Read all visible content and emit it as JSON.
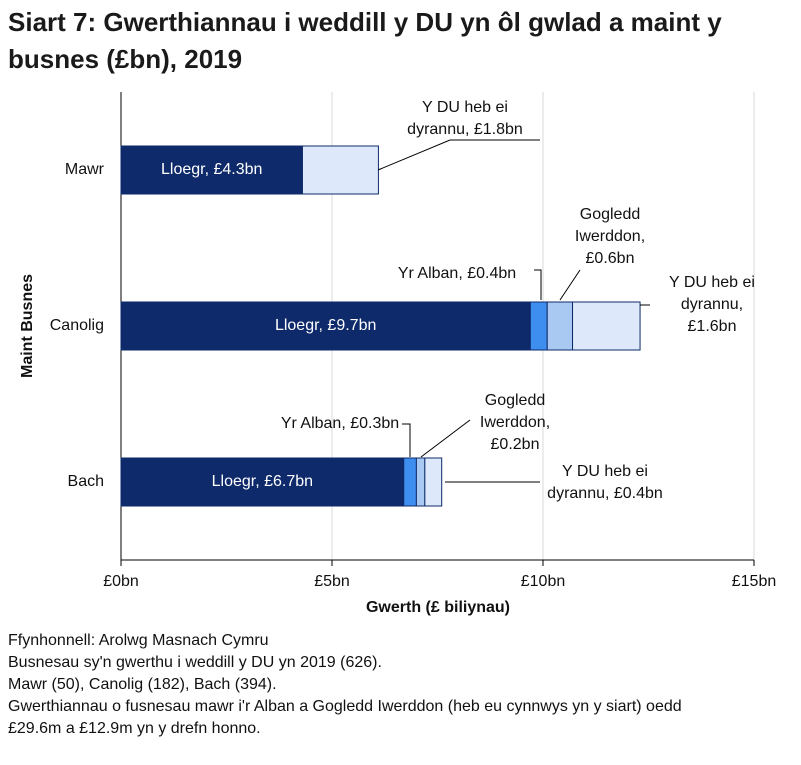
{
  "chart_data": {
    "type": "stacked-bar-horizontal",
    "title": "Siart 7: Gwerthiannau i weddill y DU yn ôl gwlad a maint y busnes (£bn), 2019",
    "x_label": "Gwerth (£ biliynau)",
    "y_label": "Maint Busnes",
    "categories": [
      "Mawr",
      "Canolig",
      "Bach"
    ],
    "series": [
      {
        "color": "#0e2a6a",
        "values": [
          4.3,
          9.7,
          6.7
        ],
        "value_labels": [
          "Lloegr, £4.3bn",
          "Lloegr, £9.7bn",
          "Lloegr, £6.7bn"
        ]
      },
      {
        "color": "#3e8ef0",
        "values": [
          null,
          0.4,
          0.3
        ],
        "value_labels": [
          null,
          "Yr Alban, £0.4bn",
          "Yr Alban, £0.3bn"
        ]
      },
      {
        "color": "#a9c9f3",
        "values": [
          null,
          0.6,
          0.2
        ],
        "value_labels": [
          null,
          "Gogledd\nIwerddon,\n£0.6bn",
          "Gogledd\nIwerddon,\n£0.2bn"
        ]
      },
      {
        "color": "#dde9fb",
        "values": [
          1.8,
          1.6,
          0.4
        ],
        "value_labels": [
          "Y DU heb ei\ndyrannu, £1.8bn",
          "Y DU heb ei\ndyrannu, £1.6bn",
          "Y DU heb ei\ndyrannu, £0.4bn"
        ]
      }
    ],
    "xlim": [
      0,
      15
    ],
    "xticks": [
      {
        "value": 0,
        "label": "£0bn"
      },
      {
        "value": 5,
        "label": "£5bn"
      },
      {
        "value": 10,
        "label": "£10bn"
      },
      {
        "value": 15,
        "label": "£15bn"
      }
    ],
    "grid": true,
    "notes": [
      "Ffynhonnell: Arolwg Masnach Cymru",
      "Busnesau sy'n gwerthu i weddill y DU yn 2019 (626).",
      "Mawr (50), Canolig (182), Bach (394).",
      "Gwerthiannau o fusnesau mawr i'r Alban a Gogledd Iwerddon (heb eu cynnwys yn y siart) oedd £29.6m a £12.9m yn y drefn honno."
    ]
  }
}
